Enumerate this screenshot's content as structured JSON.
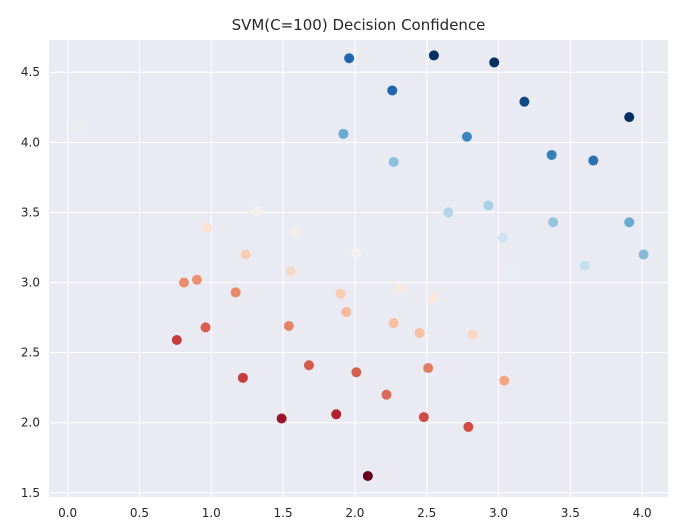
{
  "chart_data": {
    "type": "scatter",
    "title": "SVM(C=100) Decision Confidence",
    "xlabel": "",
    "ylabel": "",
    "xlim": [
      -0.13,
      4.18
    ],
    "ylim": [
      1.47,
      4.73
    ],
    "xticks": [
      0.0,
      0.5,
      1.0,
      1.5,
      2.0,
      2.5,
      3.0,
      3.5,
      4.0
    ],
    "xtick_labels": [
      "0.0",
      "0.5",
      "1.0",
      "1.5",
      "2.0",
      "2.5",
      "3.0",
      "3.5",
      "4.0"
    ],
    "yticks": [
      1.5,
      2.0,
      2.5,
      3.0,
      3.5,
      4.0,
      4.5
    ],
    "ytick_labels": [
      "1.5",
      "2.0",
      "2.5",
      "3.0",
      "3.5",
      "4.0",
      "4.5"
    ],
    "grid": true,
    "background": "#eaeaf2",
    "colormap": "RdBu",
    "points": [
      {
        "x": 0.08,
        "y": 4.11,
        "color": "#eeeeee"
      },
      {
        "x": 1.96,
        "y": 4.6,
        "color": "#2166ac"
      },
      {
        "x": 2.55,
        "y": 4.62,
        "color": "#053061"
      },
      {
        "x": 2.97,
        "y": 4.57,
        "color": "#053061"
      },
      {
        "x": 2.26,
        "y": 4.37,
        "color": "#2166ac"
      },
      {
        "x": 3.18,
        "y": 4.29,
        "color": "#0f4a85"
      },
      {
        "x": 3.91,
        "y": 4.18,
        "color": "#053061"
      },
      {
        "x": 1.92,
        "y": 4.06,
        "color": "#6aa9d0"
      },
      {
        "x": 2.78,
        "y": 4.04,
        "color": "#3b86be"
      },
      {
        "x": 3.37,
        "y": 3.91,
        "color": "#3681bb"
      },
      {
        "x": 3.66,
        "y": 3.87,
        "color": "#2a71b1"
      },
      {
        "x": 2.27,
        "y": 3.86,
        "color": "#8bc0dc"
      },
      {
        "x": 2.93,
        "y": 3.55,
        "color": "#a8d0e5"
      },
      {
        "x": 2.65,
        "y": 3.5,
        "color": "#b3d5e8"
      },
      {
        "x": 1.32,
        "y": 3.51,
        "color": "#f5f0ec"
      },
      {
        "x": 3.38,
        "y": 3.43,
        "color": "#92c5de"
      },
      {
        "x": 3.91,
        "y": 3.43,
        "color": "#6aa9d0"
      },
      {
        "x": 0.97,
        "y": 3.39,
        "color": "#fbe2d5"
      },
      {
        "x": 1.58,
        "y": 3.36,
        "color": "#f8ede6"
      },
      {
        "x": 3.03,
        "y": 3.32,
        "color": "#cde3ef"
      },
      {
        "x": 4.01,
        "y": 3.2,
        "color": "#8ab8d8"
      },
      {
        "x": 1.24,
        "y": 3.2,
        "color": "#f6cfb5"
      },
      {
        "x": 2.01,
        "y": 3.21,
        "color": "#f6f1ef"
      },
      {
        "x": 3.6,
        "y": 3.12,
        "color": "#c6e0ee"
      },
      {
        "x": 3.1,
        "y": 3.07,
        "color": "#e5eff5"
      },
      {
        "x": 1.55,
        "y": 3.08,
        "color": "#f8dac8"
      },
      {
        "x": 0.81,
        "y": 3.0,
        "color": "#ea8f6c"
      },
      {
        "x": 0.9,
        "y": 3.02,
        "color": "#eb9270"
      },
      {
        "x": 2.31,
        "y": 2.96,
        "color": "#faeade"
      },
      {
        "x": 1.17,
        "y": 2.93,
        "color": "#e8896a"
      },
      {
        "x": 1.9,
        "y": 2.92,
        "color": "#f8cdb1"
      },
      {
        "x": 2.54,
        "y": 2.89,
        "color": "#fbe8dc"
      },
      {
        "x": 1.94,
        "y": 2.79,
        "color": "#f3b99b"
      },
      {
        "x": 2.27,
        "y": 2.71,
        "color": "#f6c1a3"
      },
      {
        "x": 1.54,
        "y": 2.69,
        "color": "#e48368"
      },
      {
        "x": 0.96,
        "y": 2.68,
        "color": "#d9604f"
      },
      {
        "x": 2.45,
        "y": 2.64,
        "color": "#f5c0a3"
      },
      {
        "x": 2.82,
        "y": 2.63,
        "color": "#fbd7c3"
      },
      {
        "x": 0.76,
        "y": 2.59,
        "color": "#c43c3c"
      },
      {
        "x": 1.68,
        "y": 2.41,
        "color": "#d45a4b"
      },
      {
        "x": 2.51,
        "y": 2.39,
        "color": "#e27d63"
      },
      {
        "x": 2.01,
        "y": 2.36,
        "color": "#d5604f"
      },
      {
        "x": 1.22,
        "y": 2.32,
        "color": "#c43c3c"
      },
      {
        "x": 3.04,
        "y": 2.3,
        "color": "#f3a481"
      },
      {
        "x": 2.22,
        "y": 2.2,
        "color": "#db6b59"
      },
      {
        "x": 1.87,
        "y": 2.06,
        "color": "#b5202e"
      },
      {
        "x": 2.48,
        "y": 2.04,
        "color": "#cf4b44"
      },
      {
        "x": 1.49,
        "y": 2.03,
        "color": "#99132b"
      },
      {
        "x": 2.79,
        "y": 1.97,
        "color": "#cf4b44"
      },
      {
        "x": 2.09,
        "y": 1.62,
        "color": "#67001f"
      }
    ]
  }
}
